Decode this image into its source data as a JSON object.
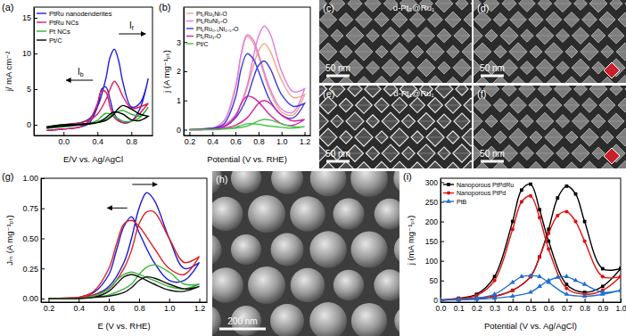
{
  "chart_data": [
    {
      "type": "line",
      "title": "(a)",
      "x_label": "E/V vs. Ag/AgCl",
      "y_label": "j/ mA cm⁻²",
      "x": [
        -0.2,
        0.0,
        0.2,
        0.3,
        0.4,
        0.5,
        0.55,
        0.6,
        0.65,
        0.7,
        0.8,
        0.9,
        1.0,
        1.0,
        0.9,
        0.8,
        0.7,
        0.6,
        0.55,
        0.5,
        0.45,
        0.4,
        0.3,
        0.2,
        0.0,
        -0.2
      ],
      "series": [
        {
          "name": "PtRu nanodenderites",
          "color": "#1f1fe0",
          "values": [
            -0.3,
            0,
            0.3,
            0.8,
            2.5,
            6.5,
            9.5,
            10.6,
            9,
            6,
            2.5,
            3,
            6.5,
            6.5,
            2.2,
            0.5,
            0.3,
            1.5,
            3.5,
            5.3,
            5.0,
            2.5,
            0.2,
            -0.3,
            -0.6,
            -0.8
          ]
        },
        {
          "name": "PtRu NCs",
          "color": "#e0195a",
          "values": [
            -0.5,
            0,
            0.3,
            0.6,
            1.5,
            3.5,
            5,
            6.1,
            5.3,
            4,
            2.3,
            2.5,
            3,
            3,
            1.6,
            0.5,
            0.3,
            1,
            2.5,
            4.6,
            4.8,
            3,
            0.5,
            -0.3,
            -0.6,
            -0.8
          ]
        },
        {
          "name": "Pt NCs",
          "color": "#2db82d",
          "values": [
            -0.3,
            0,
            0.1,
            0.2,
            0.4,
            0.8,
            1.2,
            1.6,
            1.9,
            2.0,
            1.5,
            1.2,
            2.5,
            2.5,
            1,
            0.5,
            0.5,
            1.2,
            1.5,
            1.6,
            1.2,
            0.6,
            0.2,
            0,
            -0.3,
            -0.5
          ]
        },
        {
          "name": "Pt/C",
          "color": "#000000",
          "values": [
            -0.3,
            0,
            0.1,
            0.2,
            0.3,
            0.6,
            1,
            1.6,
            2.3,
            2.7,
            2.2,
            1.5,
            1.2,
            1.2,
            0.6,
            0.7,
            1.5,
            1.8,
            1.5,
            1,
            0.6,
            0.3,
            0.1,
            0,
            -0.2,
            -0.4
          ]
        }
      ],
      "xlim": [
        -0.35,
        1.05
      ],
      "ylim": [
        -1.5,
        16.5
      ],
      "xticks": [
        {
          "value": 0,
          "label": "0.0"
        },
        0.4,
        0.8
      ],
      "yticks": [
        0,
        5,
        10,
        15
      ],
      "legend": "upper left",
      "annotations": [
        {
          "text": "If",
          "x": 0.8,
          "y": 13.5
        },
        {
          "text": "Ib",
          "x": 0.2,
          "y": 7
        }
      ]
    },
    {
      "type": "line",
      "title": "(b)",
      "x_label": "Potential (V vs. RHE)",
      "y_label": "j (A mg⁻¹ₚₜ)",
      "x": [
        0.2,
        0.4,
        0.5,
        0.6,
        0.7,
        0.75,
        0.8,
        0.85,
        0.9,
        1.0,
        1.1,
        1.2,
        1.2,
        1.1,
        1.0,
        0.9,
        0.8,
        0.75,
        0.7,
        0.65,
        0.6,
        0.5,
        0.4,
        0.2
      ],
      "series": [
        {
          "name": "Pt₁Ru₁Ni-O",
          "color": "#f4a582",
          "values": [
            0,
            0.05,
            0.15,
            0.5,
            1.4,
            2.1,
            2.7,
            2.95,
            2.7,
            1.7,
            1.1,
            1.2,
            1.2,
            0.5,
            0.6,
            1.3,
            2.5,
            3.0,
            3.2,
            2.6,
            1.5,
            0.3,
            0.05,
            0
          ]
        },
        {
          "name": "Pt₁RuNi₂-O",
          "color": "#e07be0",
          "values": [
            0,
            0.05,
            0.15,
            0.5,
            1.5,
            2.4,
            3.2,
            3.55,
            3.3,
            2,
            1.3,
            1.4,
            1.4,
            0.6,
            0.7,
            1.4,
            2.6,
            3.1,
            3.25,
            2.6,
            1.4,
            0.3,
            0.05,
            0
          ]
        },
        {
          "name": "Pt₁Ru₀.₅Ni₂.₅-O",
          "color": "#3a3adf",
          "values": [
            0,
            0.05,
            0.1,
            0.4,
            1.1,
            1.7,
            2.2,
            2.35,
            2.1,
            1.2,
            0.8,
            0.9,
            0.9,
            0.4,
            0.5,
            1.0,
            2.0,
            2.45,
            2.6,
            2.1,
            1.1,
            0.2,
            0.05,
            0
          ]
        },
        {
          "name": "Pt₁Ru₁-O",
          "color": "#d61fa0",
          "values": [
            0,
            0.02,
            0.05,
            0.15,
            0.4,
            0.65,
            0.9,
            1.0,
            0.9,
            0.5,
            0.3,
            0.35,
            0.35,
            0.15,
            0.2,
            0.5,
            0.95,
            1.1,
            1.15,
            0.9,
            0.45,
            0.1,
            0.02,
            0
          ]
        },
        {
          "name": "Pt/C",
          "color": "#47c447",
          "values": [
            0,
            0,
            0.02,
            0.05,
            0.12,
            0.2,
            0.3,
            0.35,
            0.33,
            0.2,
            0.1,
            0.1,
            0.1,
            0.05,
            0.08,
            0.12,
            0.18,
            0.2,
            0.2,
            0.15,
            0.08,
            0.02,
            0,
            0
          ]
        }
      ],
      "xlim": [
        0.15,
        1.25
      ],
      "ylim": [
        -0.2,
        4.2
      ],
      "xticks": [
        0.2,
        0.4,
        0.6,
        0.8,
        {
          "value": 1,
          "label": "1.0"
        },
        1.2
      ],
      "yticks": [
        0,
        1,
        2,
        3
      ],
      "legend": "upper left"
    },
    {
      "type": "line",
      "title": "(g)",
      "x_label": "E (V vs. RHE)",
      "y_label": "Jₘ (A mg⁻¹ₚₜ)",
      "x": [
        0.2,
        0.4,
        0.5,
        0.6,
        0.7,
        0.75,
        0.8,
        0.85,
        0.9,
        1.0,
        1.1,
        1.2,
        1.2,
        1.1,
        1.0,
        0.9,
        0.8,
        0.75,
        0.7,
        0.65,
        0.6,
        0.5,
        0.4,
        0.2
      ],
      "series": [
        {
          "color": "#1a1ad6",
          "values": [
            0,
            0.01,
            0.03,
            0.1,
            0.3,
            0.5,
            0.75,
            0.88,
            0.82,
            0.5,
            0.25,
            0.3,
            0.3,
            0.15,
            0.15,
            0.3,
            0.55,
            0.68,
            0.6,
            0.4,
            0.2,
            0.05,
            0.01,
            0
          ]
        },
        {
          "color": "#e02020",
          "values": [
            0,
            0.01,
            0.03,
            0.08,
            0.25,
            0.4,
            0.62,
            0.72,
            0.72,
            0.5,
            0.3,
            0.35,
            0.35,
            0.2,
            0.25,
            0.42,
            0.6,
            0.65,
            0.62,
            0.45,
            0.25,
            0.06,
            0.01,
            0
          ]
        },
        {
          "color": "#3cb43c",
          "values": [
            0,
            0,
            0.01,
            0.03,
            0.08,
            0.12,
            0.2,
            0.26,
            0.28,
            0.22,
            0.12,
            0.12,
            0.12,
            0.08,
            0.1,
            0.15,
            0.2,
            0.22,
            0.2,
            0.15,
            0.08,
            0.02,
            0,
            0
          ]
        },
        {
          "color": "#111111",
          "values": [
            0,
            0,
            0.01,
            0.02,
            0.05,
            0.09,
            0.15,
            0.18,
            0.17,
            0.12,
            0.08,
            0.1,
            0.1,
            0.06,
            0.07,
            0.12,
            0.18,
            0.2,
            0.18,
            0.12,
            0.06,
            0.01,
            0,
            0
          ]
        }
      ],
      "xlim": [
        0.15,
        1.25
      ],
      "ylim": [
        -0.03,
        1.0
      ],
      "xticks": [
        0.2,
        0.4,
        0.6,
        0.8,
        {
          "value": 1,
          "label": "1.0"
        },
        1.2
      ],
      "yticks": [
        {
          "value": 0,
          "label": "0.00"
        },
        0.25,
        {
          "value": 0.5,
          "label": "0.50"
        },
        0.75,
        {
          "value": 1,
          "label": "1.00"
        }
      ]
    },
    {
      "type": "line",
      "title": "(i)",
      "x_label": "Potential (V vs. Ag/AgCl)",
      "y_label": "j (mA mg⁻¹ₚₜ)",
      "x": [
        0,
        0.1,
        0.2,
        0.3,
        0.4,
        0.5,
        0.55,
        0.6,
        0.65,
        0.7,
        0.75,
        0.8,
        0.9,
        1.0,
        1.0,
        0.9,
        0.8,
        0.7,
        0.6,
        0.55,
        0.5,
        0.45,
        0.4,
        0.3,
        0.2,
        0.1,
        0
      ],
      "series": [
        {
          "name": "Nanoporous PtPdRu",
          "color": "#000000",
          "marker": "square",
          "values": [
            0,
            2,
            5,
            10,
            25,
            60,
            110,
            180,
            260,
            290,
            270,
            200,
            80,
            80,
            80,
            35,
            20,
            40,
            150,
            230,
            295,
            280,
            200,
            60,
            15,
            5,
            0
          ]
        },
        {
          "name": "Nanoporous PtPd",
          "color": "#e01010",
          "marker": "circle",
          "values": [
            0,
            2,
            5,
            10,
            25,
            60,
            110,
            170,
            215,
            225,
            200,
            150,
            60,
            60,
            60,
            25,
            15,
            30,
            130,
            210,
            265,
            250,
            180,
            50,
            12,
            4,
            0
          ]
        },
        {
          "name": "PtB",
          "color": "#1f6fd0",
          "marker": "triangle",
          "values": [
            0,
            1,
            2,
            5,
            10,
            20,
            35,
            50,
            58,
            60,
            50,
            40,
            20,
            25,
            25,
            15,
            10,
            15,
            45,
            60,
            62,
            60,
            45,
            15,
            5,
            2,
            0
          ]
        }
      ],
      "xlim": [
        0,
        1
      ],
      "ylim": [
        -5,
        310
      ],
      "xticks": [
        {
          "value": 0,
          "label": "0.0"
        },
        0.1,
        0.2,
        0.3,
        0.4,
        0.5,
        0.6,
        0.7,
        0.8,
        0.9,
        {
          "value": 1,
          "label": "1.0"
        }
      ],
      "yticks": [
        0,
        50,
        100,
        150,
        200,
        250,
        300
      ],
      "legend": "upper left"
    }
  ],
  "images": [
    {
      "label": "(c)",
      "caption": "d-Pt₃@Ru₁",
      "scale_bar": "50 nm"
    },
    {
      "label": "(d)",
      "scale_bar": "50 nm"
    },
    {
      "label": "(e)",
      "caption": "d-Pt₁@Ru₁",
      "scale_bar": "50 nm"
    },
    {
      "label": "(f)",
      "scale_bar": "50 nm"
    },
    {
      "label": "(h)",
      "scale_bar": "200 nm"
    }
  ]
}
